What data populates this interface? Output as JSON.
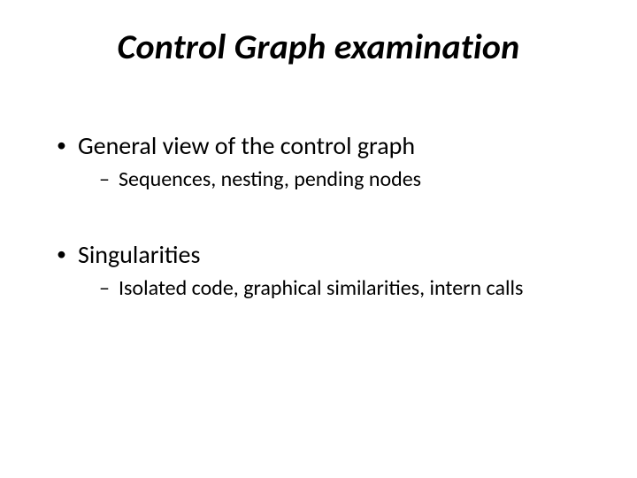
{
  "slide": {
    "title": "Control Graph examination",
    "title_fontsize": 40,
    "title_font_weight": 700,
    "title_font_style": "italic",
    "title_color": "#000000",
    "body_fontsize": 28,
    "sub_fontsize": 24,
    "text_color": "#000000",
    "background_color": "#ffffff",
    "bullets": [
      {
        "text": "General view of the control graph",
        "sub": [
          {
            "text": "Sequences, nesting, pending nodes"
          }
        ]
      },
      {
        "text": "Singularities",
        "sub": [
          {
            "text": "Isolated code, graphical similarities, intern calls"
          }
        ]
      }
    ]
  }
}
